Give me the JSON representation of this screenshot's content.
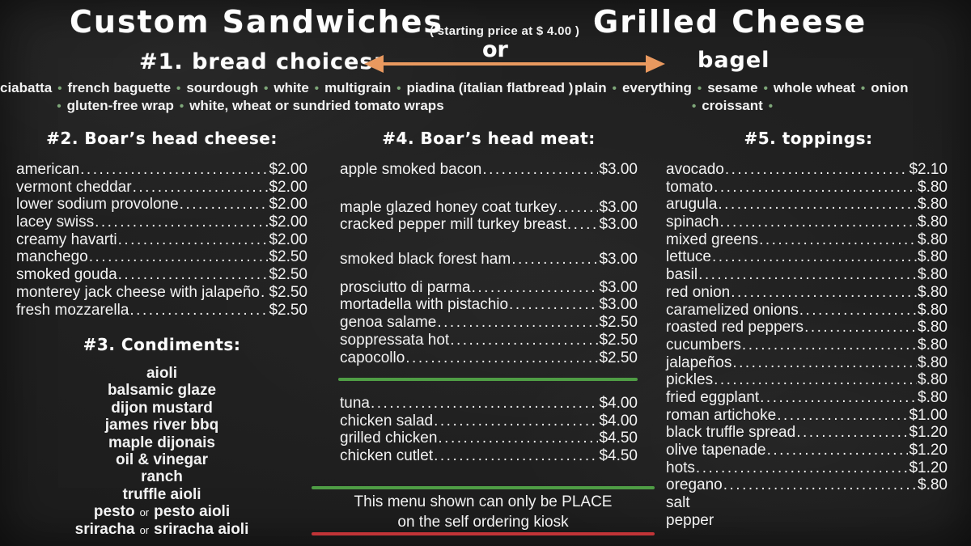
{
  "colors": {
    "accent_green": "#4f9d45",
    "accent_red": "#c13437",
    "arrow_orange": "#e9995f",
    "bullet_green": "#7fa87a"
  },
  "header": {
    "left_title": "Custom Sandwiches",
    "price_note": "( starting price at $ 4.00 )",
    "right_title": "Grilled Cheese",
    "or_label": "or"
  },
  "bread": {
    "heading": "#1. bread choices:",
    "line1": [
      "ciabatta",
      "french baguette",
      "sourdough",
      "white",
      "multigrain",
      "piadina (italian flatbread )"
    ],
    "line2": [
      "gluten-free wrap",
      "white, wheat or sundried tomato wraps"
    ]
  },
  "bagel": {
    "heading": "bagel",
    "line1": [
      "plain",
      "everything",
      "sesame",
      "whole wheat",
      "onion"
    ],
    "line2": [
      "croissant"
    ]
  },
  "cheese": {
    "heading": "#2. Boar’s head cheese:",
    "items": [
      {
        "name": "american",
        "price": "$2.00"
      },
      {
        "name": "vermont cheddar",
        "price": "$2.00"
      },
      {
        "name": "lower sodium provolone",
        "price": "$2.00"
      },
      {
        "name": "lacey swiss",
        "price": "$2.00"
      },
      {
        "name": "creamy havarti",
        "price": "$2.00"
      },
      {
        "name": "manchego",
        "price": "$2.50"
      },
      {
        "name": "smoked gouda",
        "price": "$2.50"
      },
      {
        "name": "monterey jack cheese with jalapeño",
        "price": "$2.50"
      },
      {
        "name": "fresh mozzarella",
        "price": "$2.50"
      }
    ]
  },
  "condiments": {
    "heading": "#3. Condiments:",
    "or_word": "or",
    "items": [
      [
        "aioli"
      ],
      [
        "balsamic glaze"
      ],
      [
        "dijon mustard"
      ],
      [
        "james river bbq"
      ],
      [
        "maple dijonais"
      ],
      [
        "oil & vinegar"
      ],
      [
        "ranch"
      ],
      [
        "truffle aioli"
      ],
      [
        "pesto",
        "pesto aioli"
      ],
      [
        "sriracha",
        "sriracha aioli"
      ]
    ]
  },
  "meat": {
    "heading": "#4. Boar’s head meat:",
    "groups": [
      [
        {
          "name": "apple smoked bacon",
          "price": "$3.00"
        }
      ],
      [
        {
          "name": "maple glazed honey coat turkey",
          "price": "$3.00"
        },
        {
          "name": "cracked pepper mill turkey breast",
          "price": "$3.00"
        }
      ],
      [
        {
          "name": "smoked black forest ham",
          "price": "$3.00"
        }
      ],
      [
        {
          "name": "prosciutto di parma",
          "price": "$3.00"
        },
        {
          "name": "mortadella with pistachio",
          "price": "$3.00"
        },
        {
          "name": "genoa salame",
          "price": "$2.50"
        },
        {
          "name": "soppressata hot",
          "price": "$2.50"
        },
        {
          "name": "capocollo",
          "price": "$2.50"
        }
      ]
    ],
    "extra_items": [
      {
        "name": "tuna",
        "price": "$4.00"
      },
      {
        "name": "chicken salad",
        "price": "$4.00"
      },
      {
        "name": "grilled chicken",
        "price": "$4.50"
      },
      {
        "name": "chicken cutlet",
        "price": "$4.50"
      }
    ]
  },
  "toppings": {
    "heading": "#5. toppings:",
    "items": [
      {
        "name": "avocado",
        "price": "$2.10"
      },
      {
        "name": "tomato",
        "price": "$.80"
      },
      {
        "name": "arugula",
        "price": "$.80"
      },
      {
        "name": "spinach",
        "price": "$.80"
      },
      {
        "name": "mixed greens",
        "price": "$.80"
      },
      {
        "name": "lettuce",
        "price": "$.80"
      },
      {
        "name": "basil",
        "price": "$.80"
      },
      {
        "name": "red onion",
        "price": "$.80"
      },
      {
        "name": "caramelized onions",
        "price": "$.80"
      },
      {
        "name": "roasted red peppers",
        "price": "$.80"
      },
      {
        "name": "cucumbers",
        "price": "$.80"
      },
      {
        "name": "jalapeños",
        "price": "$.80"
      },
      {
        "name": "pickles",
        "price": "$.80"
      },
      {
        "name": "fried eggplant",
        "price": "$.80"
      },
      {
        "name": "roman artichoke",
        "price": "$1.00"
      },
      {
        "name": "black truffle spread",
        "price": "$1.20"
      },
      {
        "name": "olive tapenade",
        "price": "$1.20"
      },
      {
        "name": "hots",
        "price": "$1.20"
      },
      {
        "name": "oregano",
        "price": "$.80"
      },
      {
        "name": "salt",
        "price": ""
      },
      {
        "name": "pepper",
        "price": ""
      }
    ]
  },
  "note": {
    "line1": "This menu shown can only be PLACE",
    "line2": "on the self ordering kiosk"
  }
}
